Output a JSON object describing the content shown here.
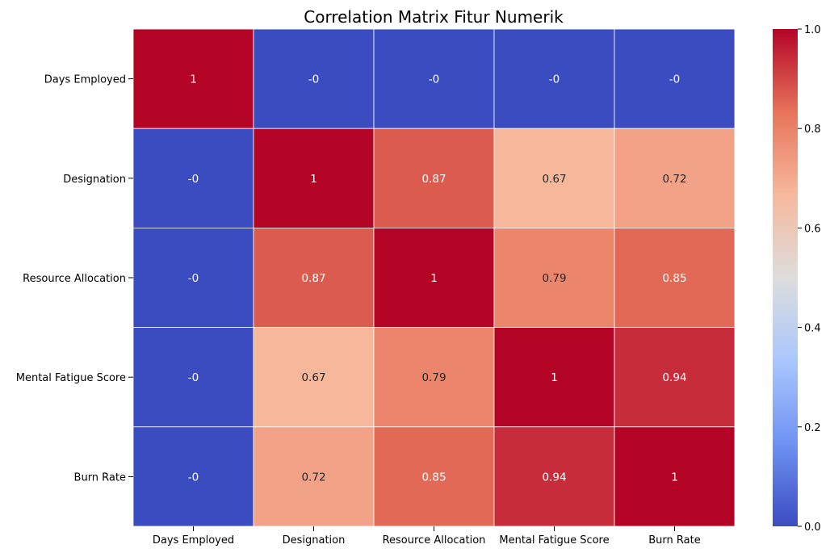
{
  "chart_data": {
    "type": "heatmap",
    "title": "Correlation Matrix Fitur Numerik",
    "rows": [
      "Days Employed",
      "Designation",
      "Resource Allocation",
      "Mental Fatigue Score",
      "Burn Rate"
    ],
    "columns": [
      "Days Employed",
      "Designation",
      "Resource Allocation",
      "Mental Fatigue Score",
      "Burn Rate"
    ],
    "values": [
      [
        1,
        0,
        0,
        0,
        0
      ],
      [
        0,
        1,
        0.87,
        0.67,
        0.72
      ],
      [
        0,
        0.87,
        1,
        0.79,
        0.85
      ],
      [
        0,
        0.67,
        0.79,
        1,
        0.94
      ],
      [
        0,
        0.72,
        0.85,
        0.94,
        1
      ]
    ],
    "annotations": [
      [
        "1",
        "-0",
        "-0",
        "-0",
        "-0"
      ],
      [
        "-0",
        "1",
        "0.87",
        "0.67",
        "0.72"
      ],
      [
        "-0",
        "0.87",
        "1",
        "0.79",
        "0.85"
      ],
      [
        "-0",
        "0.67",
        "0.79",
        "1",
        "0.94"
      ],
      [
        "-0",
        "0.72",
        "0.85",
        "0.94",
        "1"
      ]
    ],
    "colormap": "coolwarm",
    "colormap_stops": [
      "#3b4cc0",
      "#6f92f3",
      "#aac7fd",
      "#dddddd",
      "#f7b89c",
      "#e7745b",
      "#b40426"
    ],
    "vmin": 0,
    "vmax": 1,
    "colorbar_ticks": [
      "0.0",
      "0.2",
      "0.4",
      "0.6",
      "0.8",
      "1.0"
    ],
    "cell_border_color": "#ffffff"
  }
}
